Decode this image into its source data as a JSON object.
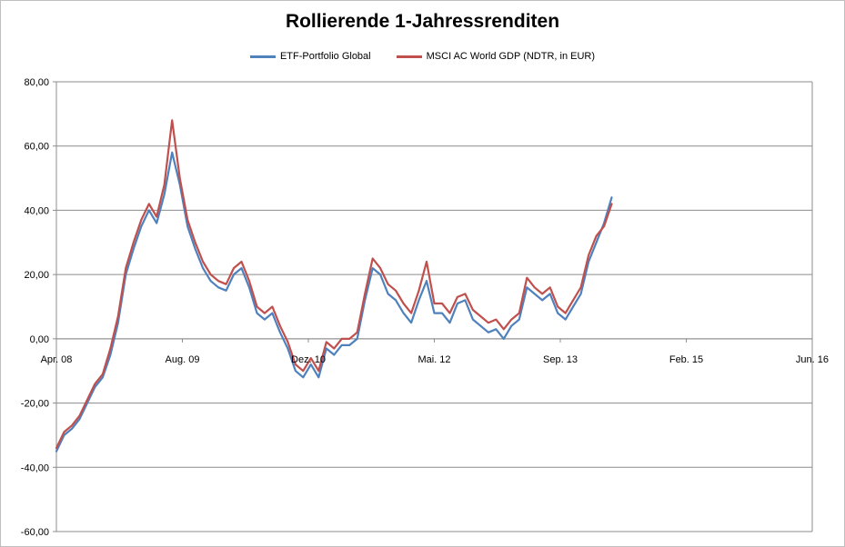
{
  "chart_data": {
    "type": "line",
    "title": "Rollierende 1-Jahressrenditen",
    "xlabel": "",
    "ylabel": "",
    "ylim": [
      -60,
      80
    ],
    "xlim": [
      "2008-04",
      "2016-06"
    ],
    "yticks": [
      "-60,00",
      "-40,00",
      "-20,00",
      "0,00",
      "20,00",
      "40,00",
      "60,00",
      "80,00"
    ],
    "xticks": [
      "Apr. 08",
      "Aug. 09",
      "Dez. 10",
      "Mai. 12",
      "Sep. 13",
      "Feb. 15",
      "Jun. 16"
    ],
    "grid": true,
    "legend_position": "top",
    "series": [
      {
        "name": "ETF-Portfolio Global",
        "color": "#4f81bd",
        "points": [
          [
            "2008-04",
            -35
          ],
          [
            "2008-05",
            -30
          ],
          [
            "2008-06",
            -28
          ],
          [
            "2008-07",
            -25
          ],
          [
            "2008-08",
            -20
          ],
          [
            "2008-09",
            -15
          ],
          [
            "2008-10",
            -12
          ],
          [
            "2008-11",
            -5
          ],
          [
            "2008-12",
            5
          ],
          [
            "2009-01",
            20
          ],
          [
            "2009-02",
            28
          ],
          [
            "2009-03",
            35
          ],
          [
            "2009-04",
            40
          ],
          [
            "2009-05",
            36
          ],
          [
            "2009-06",
            45
          ],
          [
            "2009-07",
            58
          ],
          [
            "2009-08",
            48
          ],
          [
            "2009-09",
            35
          ],
          [
            "2009-10",
            28
          ],
          [
            "2009-11",
            22
          ],
          [
            "2009-12",
            18
          ],
          [
            "2010-01",
            16
          ],
          [
            "2010-02",
            15
          ],
          [
            "2010-03",
            20
          ],
          [
            "2010-04",
            22
          ],
          [
            "2010-05",
            16
          ],
          [
            "2010-06",
            8
          ],
          [
            "2010-07",
            6
          ],
          [
            "2010-08",
            8
          ],
          [
            "2010-09",
            2
          ],
          [
            "2010-10",
            -3
          ],
          [
            "2010-11",
            -10
          ],
          [
            "2010-12",
            -12
          ],
          [
            "2011-01",
            -8
          ],
          [
            "2011-02",
            -12
          ],
          [
            "2011-03",
            -3
          ],
          [
            "2011-04",
            -5
          ],
          [
            "2011-05",
            -2
          ],
          [
            "2011-06",
            -2
          ],
          [
            "2011-07",
            0
          ],
          [
            "2011-08",
            12
          ],
          [
            "2011-09",
            22
          ],
          [
            "2011-10",
            20
          ],
          [
            "2011-11",
            14
          ],
          [
            "2011-12",
            12
          ],
          [
            "2012-01",
            8
          ],
          [
            "2012-02",
            5
          ],
          [
            "2012-03",
            12
          ],
          [
            "2012-04",
            18
          ],
          [
            "2012-05",
            8
          ],
          [
            "2012-06",
            8
          ],
          [
            "2012-07",
            5
          ],
          [
            "2012-08",
            11
          ],
          [
            "2012-09",
            12
          ],
          [
            "2012-10",
            6
          ],
          [
            "2012-11",
            4
          ],
          [
            "2012-12",
            2
          ],
          [
            "2013-01",
            3
          ],
          [
            "2013-02",
            0
          ],
          [
            "2013-03",
            4
          ],
          [
            "2013-04",
            6
          ],
          [
            "2013-05",
            16
          ],
          [
            "2013-06",
            14
          ],
          [
            "2013-07",
            12
          ],
          [
            "2013-08",
            14
          ],
          [
            "2013-09",
            8
          ],
          [
            "2013-10",
            6
          ],
          [
            "2013-11",
            10
          ],
          [
            "2013-12",
            14
          ],
          [
            "2014-01",
            24
          ],
          [
            "2014-02",
            30
          ],
          [
            "2014-03",
            36
          ],
          [
            "2014-04",
            44
          ]
        ]
      },
      {
        "name": "MSCI AC World GDP (NDTR,  in EUR)",
        "color": "#c0504d",
        "points": [
          [
            "2008-04",
            -34
          ],
          [
            "2008-05",
            -29
          ],
          [
            "2008-06",
            -27
          ],
          [
            "2008-07",
            -24
          ],
          [
            "2008-08",
            -19
          ],
          [
            "2008-09",
            -14
          ],
          [
            "2008-10",
            -11
          ],
          [
            "2008-11",
            -3
          ],
          [
            "2008-12",
            7
          ],
          [
            "2009-01",
            22
          ],
          [
            "2009-02",
            30
          ],
          [
            "2009-03",
            37
          ],
          [
            "2009-04",
            42
          ],
          [
            "2009-05",
            38
          ],
          [
            "2009-06",
            48
          ],
          [
            "2009-07",
            68
          ],
          [
            "2009-08",
            50
          ],
          [
            "2009-09",
            37
          ],
          [
            "2009-10",
            30
          ],
          [
            "2009-11",
            24
          ],
          [
            "2009-12",
            20
          ],
          [
            "2010-01",
            18
          ],
          [
            "2010-02",
            17
          ],
          [
            "2010-03",
            22
          ],
          [
            "2010-04",
            24
          ],
          [
            "2010-05",
            18
          ],
          [
            "2010-06",
            10
          ],
          [
            "2010-07",
            8
          ],
          [
            "2010-08",
            10
          ],
          [
            "2010-09",
            4
          ],
          [
            "2010-10",
            -1
          ],
          [
            "2010-11",
            -8
          ],
          [
            "2010-12",
            -10
          ],
          [
            "2011-01",
            -6
          ],
          [
            "2011-02",
            -10
          ],
          [
            "2011-03",
            -1
          ],
          [
            "2011-04",
            -3
          ],
          [
            "2011-05",
            0
          ],
          [
            "2011-06",
            0
          ],
          [
            "2011-07",
            2
          ],
          [
            "2011-08",
            14
          ],
          [
            "2011-09",
            25
          ],
          [
            "2011-10",
            22
          ],
          [
            "2011-11",
            17
          ],
          [
            "2011-12",
            15
          ],
          [
            "2012-01",
            11
          ],
          [
            "2012-02",
            8
          ],
          [
            "2012-03",
            15
          ],
          [
            "2012-04",
            24
          ],
          [
            "2012-05",
            11
          ],
          [
            "2012-06",
            11
          ],
          [
            "2012-07",
            8
          ],
          [
            "2012-08",
            13
          ],
          [
            "2012-09",
            14
          ],
          [
            "2012-10",
            9
          ],
          [
            "2012-11",
            7
          ],
          [
            "2012-12",
            5
          ],
          [
            "2013-01",
            6
          ],
          [
            "2013-02",
            3
          ],
          [
            "2013-03",
            6
          ],
          [
            "2013-04",
            8
          ],
          [
            "2013-05",
            19
          ],
          [
            "2013-06",
            16
          ],
          [
            "2013-07",
            14
          ],
          [
            "2013-08",
            16
          ],
          [
            "2013-09",
            10
          ],
          [
            "2013-10",
            8
          ],
          [
            "2013-11",
            12
          ],
          [
            "2013-12",
            16
          ],
          [
            "2014-01",
            26
          ],
          [
            "2014-02",
            32
          ],
          [
            "2014-03",
            35
          ],
          [
            "2014-04",
            42
          ]
        ]
      }
    ]
  }
}
